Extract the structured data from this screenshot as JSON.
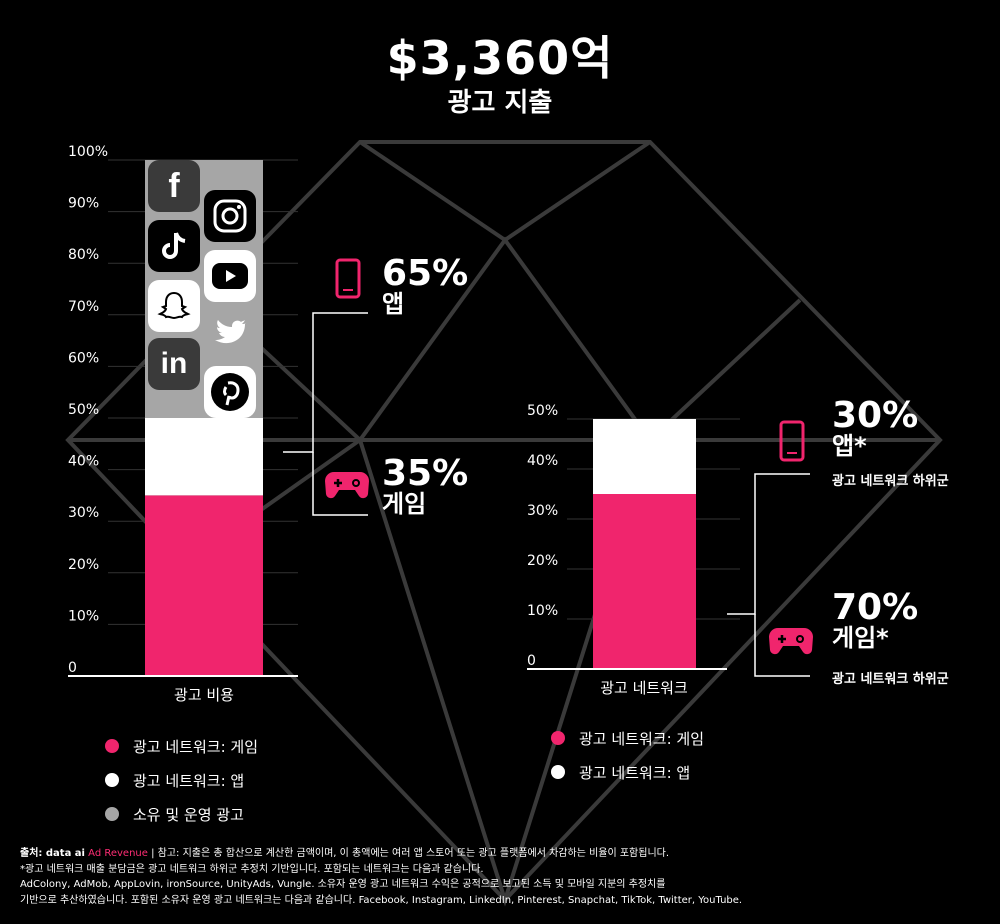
{
  "headline": "$3,360억",
  "subhead": "광고 지출",
  "colors": {
    "game": "#f0256d",
    "app": "#ffffff",
    "owned": "#a6a6a6",
    "background": "#000000"
  },
  "icons": {
    "left_bar_apps": [
      "facebook-icon",
      "instagram-icon",
      "tiktok-icon",
      "youtube-icon",
      "snapchat-icon",
      "twitter-icon",
      "linkedin-icon",
      "pinterest-icon"
    ],
    "app": "mobile-phone-icon",
    "game": "gamepad-icon"
  },
  "chart_data": [
    {
      "type": "bar",
      "stacked": true,
      "categories": [
        "광고 비용"
      ],
      "y_tick_labels": [
        "0",
        "10%",
        "20%",
        "30%",
        "40%",
        "50%",
        "60%",
        "70%",
        "80%",
        "90%",
        "100%"
      ],
      "ylim": [
        0,
        100
      ],
      "series": [
        {
          "name": "광고 네트워크: 게임",
          "values": [
            35
          ]
        },
        {
          "name": "광고 네트워크: 앱",
          "values": [
            15
          ]
        },
        {
          "name": "소유 및 운영 광고",
          "values": [
            50
          ]
        }
      ],
      "annotations": [
        {
          "value": "65%",
          "label": "앱"
        },
        {
          "value": "35%",
          "label": "게임"
        }
      ],
      "legend": [
        "광고 네트워크: 게임",
        "광고 네트워크: 앱",
        "소유 및 운영 광고"
      ],
      "grid": true
    },
    {
      "type": "bar",
      "stacked": true,
      "categories": [
        "광고 네트워크"
      ],
      "y_tick_labels": [
        "0",
        "10%",
        "20%",
        "30%",
        "40%",
        "50%"
      ],
      "ylim": [
        0,
        50
      ],
      "series": [
        {
          "name": "광고 네트워크: 게임",
          "values": [
            35
          ]
        },
        {
          "name": "광고 네트워크: 앱",
          "values": [
            15
          ]
        }
      ],
      "annotations": [
        {
          "value": "30%",
          "label": "앱*",
          "note": "광고 네트워크 하위군"
        },
        {
          "value": "70%",
          "label": "게임*",
          "note": "광고 네트워크 하위군"
        }
      ],
      "legend": [
        "광고 네트워크: 게임",
        "광고 네트워크: 앱"
      ],
      "grid": true
    }
  ],
  "footer": {
    "source_prefix": "출처: data ai",
    "source_brand": "Ad Revenue",
    "line1_rest": " | 참고: 지출은 총 합산으로 계산한 금액이며, 이 총액에는 여러 앱 스토어 또는 광고 플랫폼에서 차감하는 비율이 포함됩니다.",
    "line2": "*광고 네트워크 매출 분담금은 광고 네트워크 하위군 추정치 기반입니다. 포함되는 네트워크는 다음과 같습니다.",
    "line3": "AdColony, AdMob, AppLovin, ironSource, UnityAds, Vungle. 소유자 운영 광고 네트워크 수익은 공적으로 보고된 소득 및 모바일 지분의 추정치를",
    "line4": "기반으로 추산하였습니다. 포함된 소유자 운영 광고 네트워크는 다음과 같습니다. Facebook, Instagram, LinkedIn, Pinterest, Snapchat, TikTok, Twitter, YouTube."
  }
}
